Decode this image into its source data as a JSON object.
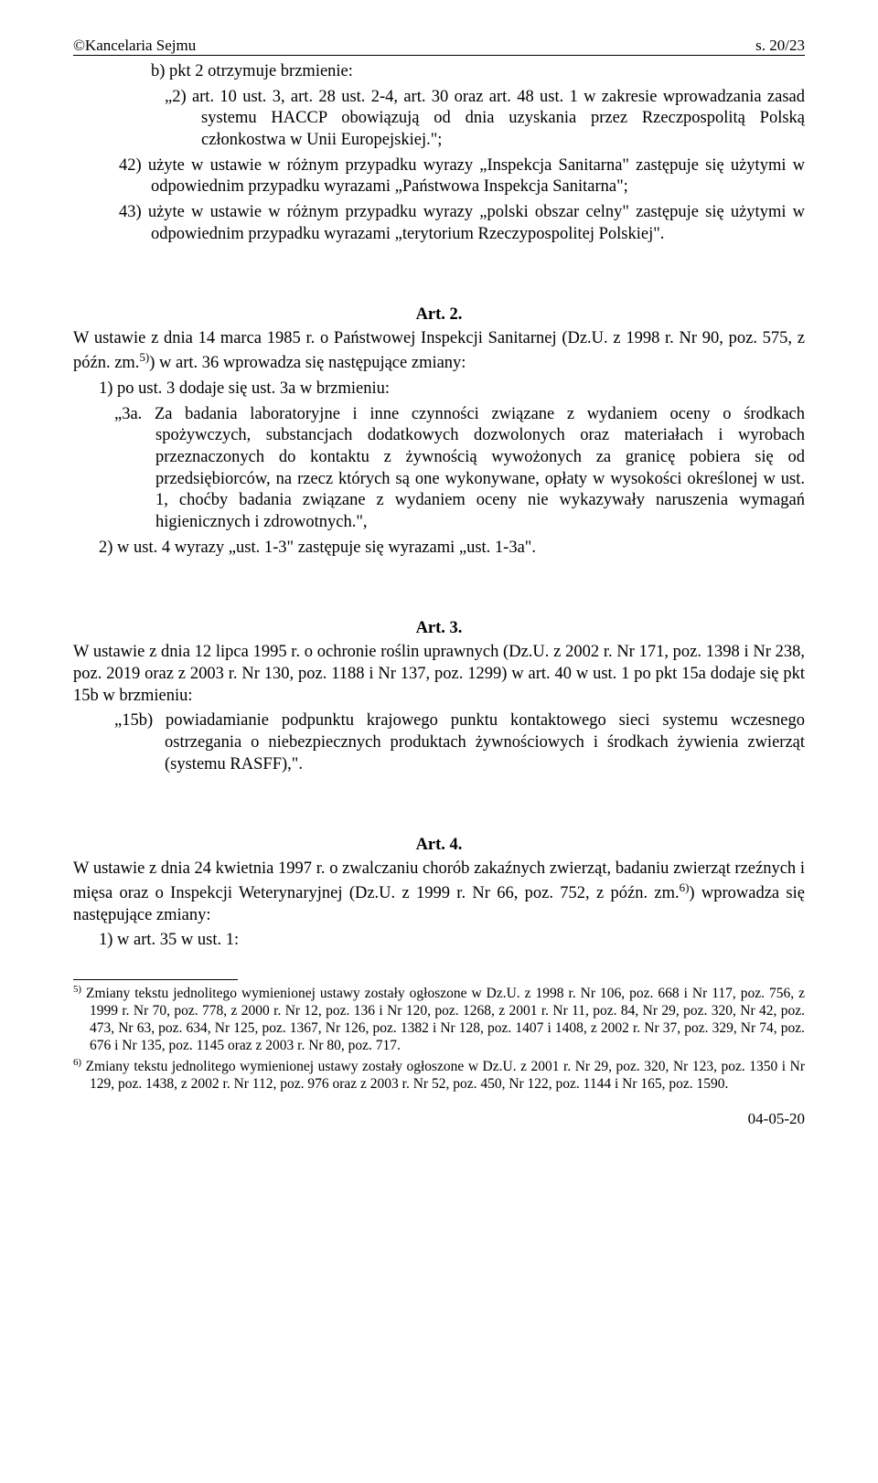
{
  "header": {
    "left": "©Kancelaria Sejmu",
    "right": "s. 20/23"
  },
  "body": {
    "line_b": "b) pkt 2 otrzymuje brzmienie:",
    "quote_2": "„2) art. 10 ust. 3, art. 28 ust. 2-4, art. 30 oraz art. 48 ust. 1 w zakresie wprowadzania zasad systemu HACCP obowiązują od dnia uzyskania przez Rzeczpospolitą Polską członkostwa w Unii Europejskiej.\";",
    "item_42": "42) użyte w ustawie w różnym przypadku wyrazy „Inspekcja Sanitarna\" zastępuje się użytymi w odpowiednim przypadku wyrazami „Państwowa Inspekcja Sanitarna\";",
    "item_43": "43) użyte w ustawie w różnym przypadku wyrazy „polski obszar celny\" zastępuje się użytymi w odpowiednim przypadku wyrazami „terytorium Rzeczypospolitej Polskiej\"."
  },
  "art2": {
    "heading": "Art. 2.",
    "intro": "W ustawie z dnia 14 marca 1985 r. o Państwowej Inspekcji Sanitarnej (Dz.U. z 1998 r. Nr 90, poz. 575, z późn. zm.5)) w art. 36 wprowadza się następujące zmiany:",
    "p1": "1) po ust. 3 dodaje się ust. 3a w brzmieniu:",
    "q3a": "„3a. Za badania laboratoryjne i inne czynności związane z wydaniem oceny o środkach spożywczych, substancjach dodatkowych dozwolonych oraz materiałach i wyrobach przeznaczonych do kontaktu z żywnością wywożonych za granicę pobiera się od przedsiębiorców, na rzecz których są one wykonywane, opłaty w wysokości określonej w ust. 1, choćby badania związane z wydaniem oceny nie wykazywały naruszenia wymagań higienicznych i zdrowotnych.\",",
    "p2": "2) w ust. 4 wyrazy „ust. 1-3\" zastępuje się wyrazami „ust. 1-3a\"."
  },
  "art3": {
    "heading": "Art. 3.",
    "intro": "W ustawie z dnia 12 lipca 1995 r. o ochronie roślin uprawnych (Dz.U. z 2002 r. Nr 171, poz. 1398 i Nr 238, poz. 2019 oraz z 2003 r. Nr 130, poz. 1188 i Nr 137, poz. 1299) w art. 40 w ust. 1 po pkt 15a dodaje się pkt 15b w brzmieniu:",
    "q15b": "„15b) powiadamianie podpunktu krajowego punktu kontaktowego sieci systemu wczesnego ostrzegania o niebezpiecznych produktach żywnościowych i środkach żywienia zwierząt (systemu RASFF),\"."
  },
  "art4": {
    "heading": "Art. 4.",
    "intro": "W ustawie z dnia 24 kwietnia 1997 r. o zwalczaniu chorób zakaźnych zwierząt, badaniu zwierząt rzeźnych i mięsa oraz o Inspekcji Weterynaryjnej (Dz.U. z 1999 r. Nr 66, poz. 752, z późn. zm.6)) wprowadza się następujące zmiany:",
    "p1": "1) w art. 35 w ust. 1:"
  },
  "footnotes": {
    "f5": "5) Zmiany tekstu jednolitego wymienionej ustawy zostały ogłoszone w Dz.U. z 1998 r. Nr 106, poz. 668 i Nr 117, poz. 756, z 1999 r. Nr 70, poz. 778, z 2000 r. Nr 12, poz. 136 i Nr 120, poz. 1268, z 2001 r. Nr 11, poz. 84, Nr 29, poz. 320, Nr 42, poz. 473, Nr 63, poz. 634, Nr 125, poz. 1367, Nr 126, poz. 1382 i Nr 128, poz. 1407 i 1408, z 2002 r. Nr 37, poz. 329, Nr 74, poz. 676 i Nr 135, poz. 1145 oraz z 2003 r. Nr 80, poz. 717.",
    "f6": "6) Zmiany tekstu jednolitego wymienionej ustawy zostały ogłoszone w Dz.U. z 2001 r. Nr 29, poz. 320, Nr 123, poz. 1350 i Nr 129, poz. 1438, z 2002 r. Nr 112, poz. 976 oraz z 2003 r. Nr 52, poz. 450, Nr 122, poz. 1144 i Nr 165, poz. 1590."
  },
  "footer": {
    "date": "04-05-20"
  }
}
